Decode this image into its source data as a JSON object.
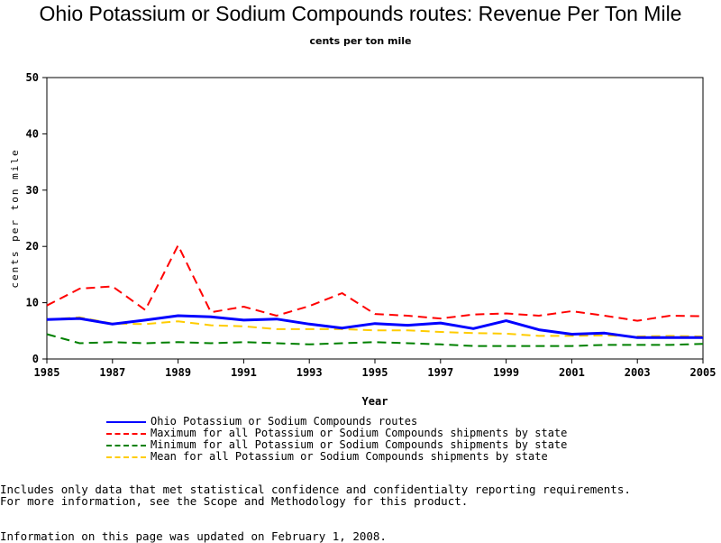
{
  "chart_data": {
    "type": "line",
    "title": "Ohio Potassium or Sodium Compounds routes: Revenue Per Ton Mile",
    "subtitle": "cents per ton mile",
    "xlabel": "Year",
    "ylabel": "cents per ton mile",
    "xlim": [
      1985,
      2005
    ],
    "ylim": [
      0,
      50
    ],
    "x_ticks": [
      "1985",
      "1987",
      "1989",
      "1991",
      "1993",
      "1995",
      "1997",
      "1999",
      "2001",
      "2003",
      "2005"
    ],
    "y_ticks": [
      "0",
      "10",
      "20",
      "30",
      "40",
      "50"
    ],
    "grid": false,
    "legend_position": "bottom",
    "x": [
      1985,
      1986,
      1987,
      1988,
      1989,
      1990,
      1991,
      1992,
      1993,
      1994,
      1995,
      1996,
      1997,
      1998,
      1999,
      2000,
      2001,
      2002,
      2003,
      2004,
      2005
    ],
    "series": [
      {
        "name": "Ohio Potassium or Sodium Compounds routes",
        "color": "#0000ff",
        "dash": "solid",
        "values": [
          7.0,
          7.2,
          6.2,
          6.9,
          7.7,
          7.5,
          6.9,
          7.1,
          6.2,
          5.5,
          6.3,
          6.0,
          6.4,
          5.4,
          6.8,
          5.2,
          4.4,
          4.6,
          3.8,
          3.8,
          3.8
        ]
      },
      {
        "name": "Maximum for all Potassium or Sodium Compounds shipments by state",
        "color": "#ff0000",
        "dash": "dashed",
        "values": [
          9.5,
          12.5,
          12.9,
          8.7,
          20.2,
          8.3,
          9.3,
          7.7,
          9.4,
          11.7,
          8.0,
          7.7,
          7.2,
          7.9,
          8.1,
          7.7,
          8.5,
          7.7,
          6.8,
          7.7,
          7.6
        ]
      },
      {
        "name": "Minimum for all Potassium or Sodium Compounds shipments by state",
        "color": "#008000",
        "dash": "dashed",
        "values": [
          4.4,
          2.8,
          3.0,
          2.8,
          3.0,
          2.8,
          3.0,
          2.8,
          2.6,
          2.8,
          3.0,
          2.8,
          2.6,
          2.3,
          2.3,
          2.3,
          2.3,
          2.5,
          2.5,
          2.5,
          2.7
        ]
      },
      {
        "name": "Mean for all Potassium or Sodium Compounds shipments by state",
        "color": "#ffcc00",
        "dash": "dashed",
        "values": [
          7.0,
          7.4,
          6.3,
          6.2,
          6.7,
          6.0,
          5.8,
          5.3,
          5.3,
          5.3,
          5.1,
          5.1,
          4.8,
          4.6,
          4.5,
          4.1,
          4.1,
          4.2,
          4.0,
          4.1,
          4.0
        ]
      }
    ]
  },
  "footnotes": {
    "line1": "Includes only data that met statistical confidence and confidentialty reporting requirements.",
    "line2": "For more information, see the Scope and Methodology for this product.",
    "line3": "Information on this page was updated on February 1, 2008."
  }
}
